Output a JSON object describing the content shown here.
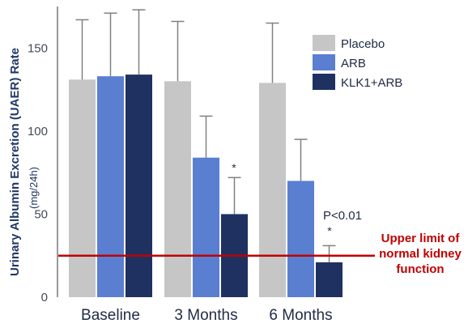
{
  "chart_data": {
    "type": "bar",
    "categories": [
      "Baseline",
      "3 Months",
      "6 Months"
    ],
    "series": [
      {
        "name": "Placebo",
        "values": [
          131,
          130,
          129
        ],
        "error_upper": [
          167,
          166,
          165
        ],
        "color": "#c6c6c6"
      },
      {
        "name": "ARB",
        "values": [
          133,
          84,
          70
        ],
        "error_upper": [
          171,
          109,
          95
        ],
        "color": "#5a7fd1"
      },
      {
        "name": "KLK1+ARB",
        "values": [
          134,
          50,
          21
        ],
        "error_upper": [
          173,
          72,
          31
        ],
        "color": "#1f3160"
      }
    ],
    "ylabel": "Urinary Albumin Excretion (UAER) Rate",
    "yunit": "(mg/24h)",
    "ylim": [
      0,
      175
    ],
    "yticks": [
      "0",
      "50",
      "100",
      "150"
    ],
    "ytick_values": [
      0,
      50,
      100,
      150
    ],
    "legend_position": "top-right",
    "reference_line": {
      "value": 25,
      "label_lines": [
        "Upper limit of",
        "normal kidney",
        "function"
      ],
      "color": "#c00000"
    },
    "annotations": [
      {
        "text": "*",
        "category": "3 Months",
        "series": "KLK1+ARB"
      },
      {
        "text": "P<0.01",
        "category": "6 Months",
        "series": "KLK1+ARB"
      },
      {
        "text": "*",
        "category": "6 Months",
        "series": "KLK1+ARB"
      }
    ]
  }
}
